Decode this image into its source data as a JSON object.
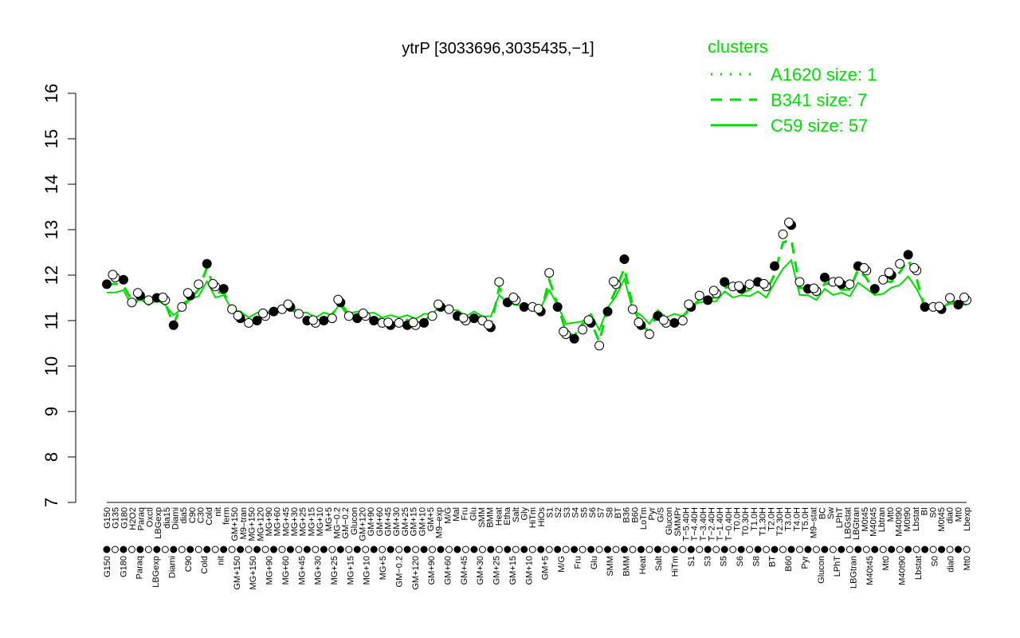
{
  "chart_data": {
    "type": "scatter",
    "title": "ytrP [3033696,3035435,−1]",
    "xlabel": "",
    "ylabel": "",
    "ylim": [
      7,
      16
    ],
    "y_ticks": [
      "7",
      "8",
      "9",
      "10",
      "11",
      "12",
      "13",
      "14",
      "15",
      "16"
    ],
    "grid": false,
    "legend": {
      "title": "clusters",
      "placement": "top-right",
      "color": "#00dd00",
      "entries": [
        {
          "label": "A1620 size: 1",
          "style": "dotted"
        },
        {
          "label": "B341 size: 7",
          "style": "dashed"
        },
        {
          "label": "C59 size: 57",
          "style": "solid"
        }
      ]
    },
    "line_color": "#00dd00",
    "x_labels_top": [
      "G150",
      "G135",
      "G180",
      "H2O2",
      "Paraq",
      "Oxctl",
      "LBGexp",
      "dia15",
      "Diami",
      "dia5",
      "C90",
      "C30",
      "Cold",
      "nit",
      "ferm",
      "GM+150",
      "M9–tran",
      "MG+150",
      "MG+120",
      "MG+90",
      "MG+60",
      "MG+45",
      "MG+30",
      "MG+25",
      "MG+15",
      "MG+10",
      "MG+5",
      "MG−0.2",
      "GM−0.2",
      "Glucon",
      "GM+120",
      "GM+90",
      "GM+60",
      "GM+45",
      "GM+30",
      "GM+25",
      "GM+15",
      "GM+10",
      "GM+5",
      "M9–exp",
      "M/G",
      "Mal",
      "Fru",
      "Glu",
      "SMM",
      "BMM",
      "Heat",
      "Etha",
      "Salt",
      "Gly",
      "HiTm",
      "HiOs",
      "S1",
      "S2",
      "S3",
      "S4",
      "S5",
      "S6",
      "S7",
      "S8",
      "BT",
      "B36",
      "B60",
      "LoTm",
      "Pyr",
      "G/S",
      "Glucon",
      "SMMPr",
      "T−5.40H",
      "T−4.40H",
      "T−3.40H",
      "T−2.40H",
      "T−1.40H",
      "T−0.40H",
      "T0.0H",
      "T0.30H",
      "T1.0H",
      "T1.30H",
      "T2.0H",
      "T2.30H",
      "T3.0H",
      "T4.0H",
      "T5.0H",
      "M9–stat",
      "BC",
      "Sw",
      "LPhT",
      "LBGstat",
      "LBGtran",
      "M0t45",
      "M40t45",
      "Lbtran",
      "Mt0",
      "M40t90",
      "M0t90",
      "Lbstat",
      "BI",
      "S0",
      "M0t45",
      "dia0",
      "Mt0",
      "Lbexp"
    ],
    "x_labels_bottom": [
      "G150",
      "G180",
      "Paraq",
      "LBGexp",
      "Diami",
      "C90",
      "Cold",
      "nit",
      "GM+150",
      "MG+150",
      "MG+90",
      "MG+60",
      "MG+45",
      "MG+30",
      "MG+25",
      "MG+15",
      "MG+10",
      "MG+5",
      "GM−0.2",
      "GM+120",
      "GM+90",
      "GM+60",
      "GM+45",
      "GM+30",
      "GM+25",
      "GM+15",
      "GM+10",
      "GM+5",
      "M/G",
      "Fru",
      "Glu",
      "SMM",
      "BMM",
      "Heat",
      "Salt",
      "HiTm",
      "S1",
      "S3",
      "S5",
      "S6",
      "S8",
      "BT",
      "B60",
      "Pyr",
      "Glucon",
      "LPhT",
      "LBGtran",
      "M40t45",
      "Mt0",
      "M40t90",
      "Lbstat",
      "S0",
      "dia0",
      "Mt0"
    ],
    "axis_label_list": [
      "G150",
      "G135",
      "G180",
      "H2O2",
      "Paraq",
      "Oxctl",
      "LBGexp",
      "dia15",
      "Diami",
      "dia5",
      "C90",
      "C30",
      "Cold",
      "nit",
      "ferm",
      "GM+150",
      "M9–tran",
      "MG+150",
      "MG+120",
      "MG+90",
      "MG+60",
      "MG+45",
      "MG+30",
      "MG+25",
      "MG+15",
      "MG+10",
      "MG+5",
      "MG−0.2",
      "GM−0.2",
      "Glucon",
      "GM+120",
      "GM+90",
      "GM+60",
      "GM+45",
      "GM+30",
      "GM+25",
      "GM+15",
      "GM+10",
      "GM+5",
      "M9–exp",
      "M/G",
      "Mal",
      "Fru",
      "Glu",
      "SMM",
      "BMM",
      "Heat",
      "Etha",
      "Salt",
      "Gly",
      "HiTm",
      "HiOs",
      "S1",
      "S2",
      "S3",
      "S4",
      "S5",
      "S6",
      "S7",
      "S8",
      "BT",
      "B36",
      "B60",
      "LoTm",
      "Pyr",
      "G/S",
      "Glucon",
      "SMMPr",
      "T−5.40H",
      "T−4.40H",
      "T−3.40H",
      "T−2.40H",
      "T−1.40H",
      "T−0.40H",
      "T0.0H",
      "T0.30H",
      "T1.0H",
      "T1.30H",
      "T2.0H",
      "T2.30H",
      "T3.0H",
      "T4.0H",
      "T5.0H",
      "M9–stat",
      "BC",
      "Sw",
      "LPhT",
      "LBGstat",
      "LBGtran",
      "M0t45",
      "M40t45",
      "Lbtran",
      "Mt0",
      "M40t90",
      "M0t90",
      "Lbstat",
      "BI",
      "S0",
      "M0t45",
      "dia0",
      "Mt0",
      "Lbexp"
    ],
    "x": [
      0,
      1,
      2,
      3,
      4,
      5,
      6,
      7,
      8,
      9,
      10,
      11,
      12,
      13,
      14,
      15,
      16,
      17,
      18,
      19,
      20,
      21,
      22,
      23,
      24,
      25,
      26,
      27,
      28,
      29,
      30,
      31,
      32,
      33,
      34,
      35,
      36,
      37,
      38,
      39,
      40,
      41,
      42,
      43,
      44,
      45,
      46,
      47,
      48,
      49,
      50,
      51,
      52,
      53,
      54,
      55,
      56,
      57,
      58,
      59,
      60,
      61,
      62,
      63,
      64,
      65,
      66,
      67,
      68,
      69,
      70,
      71,
      72,
      73,
      74,
      75,
      76,
      77,
      78,
      79,
      80,
      81,
      82,
      83,
      84,
      85,
      86,
      87,
      88,
      89,
      90,
      91,
      92,
      93,
      94,
      95,
      96,
      97,
      98,
      99,
      100,
      101,
      102,
      103
    ],
    "series": [
      {
        "values": [
          11.8,
          11.95,
          11.9,
          11.4,
          11.55,
          11.45,
          11.5,
          11.45,
          10.9,
          11.3,
          11.55,
          11.8,
          12.25,
          11.75,
          11.7,
          11.25,
          11.05,
          10.95,
          11.0,
          11.1,
          11.2,
          11.25,
          11.3,
          11.15,
          11.0,
          10.95,
          11.0,
          11.05,
          11.4,
          11.1,
          11.05,
          11.1,
          11.0,
          10.95,
          10.9,
          10.95,
          10.9,
          10.9,
          10.95,
          11.1,
          11.3,
          11.25,
          11.1,
          11.0,
          11.05,
          11.0,
          10.85,
          11.85,
          11.4,
          11.45,
          11.3,
          11.3,
          11.2,
          12.05,
          11.3,
          10.7,
          10.6,
          10.8,
          10.95,
          10.45,
          11.2,
          11.8,
          12.35,
          11.25,
          10.9,
          10.7,
          11.1,
          10.95,
          10.95,
          11.0,
          11.3,
          11.55,
          11.45,
          11.6,
          11.85,
          11.75,
          11.7,
          11.8,
          11.85,
          11.75,
          12.2,
          12.9,
          13.1,
          11.85,
          11.7,
          11.65,
          11.95,
          11.85,
          11.8,
          11.8,
          12.2,
          12.1,
          11.7,
          11.9,
          12.0,
          12.25,
          12.45,
          12.1,
          11.3,
          11.3,
          11.25,
          11.5,
          11.35,
          11.45
        ]
      }
    ]
  }
}
